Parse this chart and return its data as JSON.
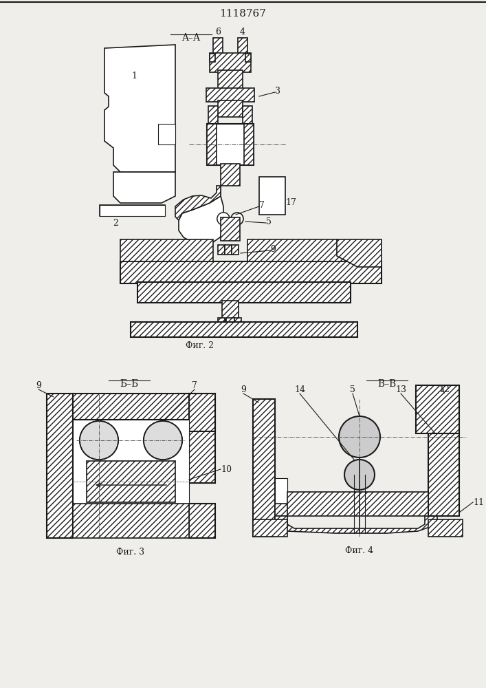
{
  "title": "1118767",
  "fig2_label": "Фиг. 2",
  "fig3_label": "Фиг. 3",
  "fig4_label": "Фиг. 4",
  "section_aa": "A–A",
  "section_bb": "Б–Б",
  "section_vv": "В–В",
  "bg_color": "#f0eeea",
  "lc": "#1a1a1a"
}
